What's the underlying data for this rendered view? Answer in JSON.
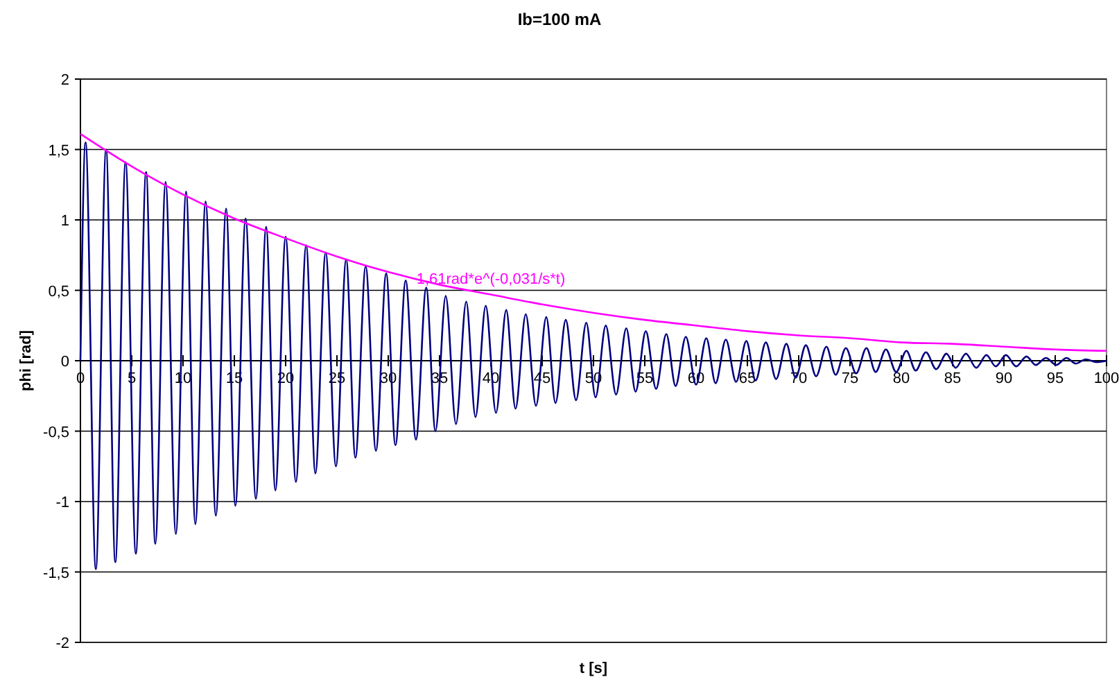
{
  "chart_data": {
    "type": "line",
    "title": "Ib=100 mA",
    "xlabel": "t [s]",
    "ylabel": "phi [rad]",
    "xlim": [
      0,
      100
    ],
    "xticks": [
      0,
      5,
      10,
      15,
      20,
      25,
      30,
      35,
      40,
      45,
      50,
      55,
      60,
      65,
      70,
      75,
      80,
      85,
      90,
      95,
      100
    ],
    "ylim": [
      -2,
      2
    ],
    "yticks": [
      -2,
      {
        "value": -1.5,
        "label": "-1,5"
      },
      -1,
      {
        "value": -0.5,
        "label": "-0,5"
      },
      0,
      {
        "value": 0.5,
        "label": "0,5"
      },
      1,
      {
        "value": 1.5,
        "label": "1,5"
      },
      2
    ],
    "grid": "y",
    "marker": "none",
    "line_style": "solid",
    "series": [
      {
        "color": "#000080",
        "x": [
          0,
          0.5,
          1.5,
          2.5,
          3.4,
          4.4,
          5.4,
          6.4,
          7.3,
          8.3,
          9.3,
          10.3,
          11.2,
          12.2,
          13.2,
          14.2,
          15.1,
          16.1,
          17.1,
          18.1,
          19,
          20,
          21,
          22,
          22.9,
          23.9,
          24.9,
          25.9,
          26.8,
          27.8,
          28.8,
          29.8,
          30.7,
          31.7,
          32.7,
          33.7,
          34.6,
          35.6,
          36.6,
          37.6,
          38.5,
          39.5,
          40.5,
          41.5,
          42.4,
          43.4,
          44.4,
          45.4,
          46.3,
          47.3,
          48.3,
          49.3,
          50.2,
          51.2,
          52.2,
          53.2,
          54.1,
          55.1,
          56.1,
          57.1,
          58,
          59,
          60,
          61,
          61.9,
          62.9,
          63.9,
          64.9,
          65.8,
          66.8,
          67.8,
          68.8,
          69.7,
          70.7,
          71.7,
          72.7,
          73.6,
          74.6,
          75.6,
          76.6,
          77.5,
          78.5,
          79.5,
          80.5,
          81.4,
          82.4,
          83.4,
          84.4,
          85.3,
          86.3,
          87.3,
          88.3,
          89.2,
          90.2,
          91.2,
          92.2,
          93.1,
          94.1,
          95.1,
          96.1,
          97,
          98,
          99,
          100
        ],
        "values": [
          0,
          1.55,
          -1.48,
          1.5,
          -1.43,
          1.41,
          -1.37,
          1.34,
          -1.3,
          1.27,
          -1.23,
          1.2,
          -1.16,
          1.13,
          -1.1,
          1.08,
          -1.03,
          1.01,
          -0.98,
          0.95,
          -0.92,
          0.88,
          -0.86,
          0.82,
          -0.8,
          0.77,
          -0.75,
          0.72,
          -0.69,
          0.67,
          -0.64,
          0.62,
          -0.6,
          0.57,
          -0.56,
          0.52,
          -0.5,
          0.46,
          -0.45,
          0.42,
          -0.4,
          0.39,
          -0.37,
          0.36,
          -0.34,
          0.33,
          -0.32,
          0.31,
          -0.3,
          0.29,
          -0.28,
          0.27,
          -0.26,
          0.25,
          -0.24,
          0.23,
          -0.22,
          0.21,
          -0.2,
          0.19,
          -0.18,
          0.17,
          -0.17,
          0.16,
          -0.16,
          0.15,
          -0.15,
          0.14,
          -0.14,
          0.13,
          -0.13,
          0.12,
          -0.12,
          0.11,
          -0.11,
          0.1,
          -0.1,
          0.09,
          -0.09,
          0.09,
          -0.08,
          0.08,
          -0.08,
          0.07,
          -0.07,
          0.06,
          -0.06,
          0.05,
          -0.05,
          0.05,
          -0.05,
          0.04,
          -0.04,
          0.04,
          -0.04,
          0.03,
          -0.03,
          0.02,
          -0.03,
          0.02,
          -0.02,
          0.01,
          -0.01,
          0
        ]
      },
      {
        "name": "1,61rad*e^(-0,031/s*t)",
        "color": "#ff00ff",
        "x": [
          0,
          5,
          10,
          15,
          20,
          25,
          30,
          35,
          40,
          45,
          50,
          55,
          60,
          65,
          70,
          75,
          80,
          85,
          90,
          95,
          100
        ],
        "values": [
          1.61,
          1.38,
          1.18,
          1.01,
          0.87,
          0.74,
          0.63,
          0.54,
          0.47,
          0.4,
          0.34,
          0.29,
          0.25,
          0.21,
          0.18,
          0.16,
          0.13,
          0.12,
          0.1,
          0.08,
          0.07
        ]
      }
    ]
  }
}
